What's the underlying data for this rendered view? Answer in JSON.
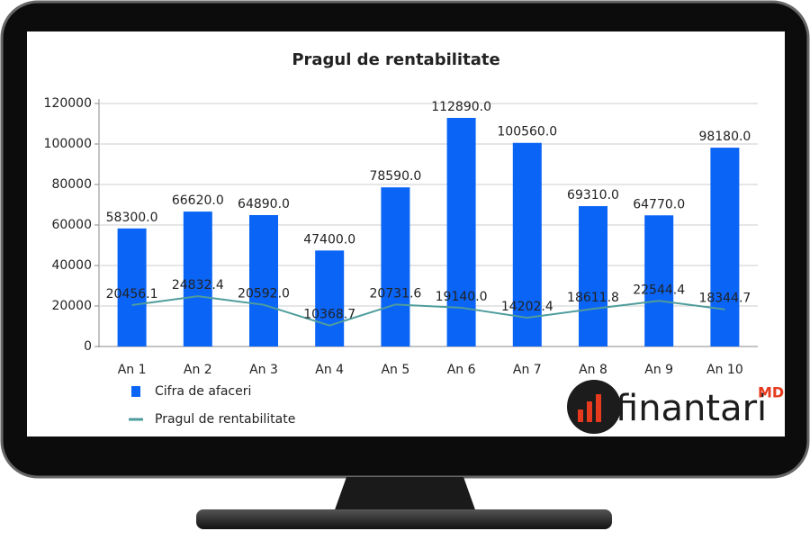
{
  "chart_data": {
    "type": "bar_line",
    "title": "Pragul de rentabilitate",
    "categories": [
      "An 1",
      "An 2",
      "An 3",
      "An 4",
      "An 5",
      "An 6",
      "An 7",
      "An 8",
      "An 9",
      "An 10"
    ],
    "series": [
      {
        "name": "Cifra de afaceri",
        "type": "bar",
        "color": "#0a64f5",
        "values": [
          58300,
          66620,
          64890,
          47400,
          78590,
          112890,
          100560,
          69310,
          64770,
          98180
        ],
        "value_labels": [
          "58300.0",
          "66620.0",
          "64890.0",
          "47400.0",
          "78590.0",
          "112890.0",
          "100560.0",
          "69310.0",
          "64770.0",
          "98180.0"
        ]
      },
      {
        "name": "Pragul de rentabilitate",
        "type": "line",
        "color": "#4f9c9c",
        "values": [
          20456.1,
          24832.4,
          20592,
          10368.7,
          20731.6,
          19140,
          14202.4,
          18611.8,
          22544.4,
          18344.7
        ],
        "value_labels": [
          "20456.1",
          "24832.4",
          "20592.0",
          "10368.7",
          "20731.6",
          "19140.0",
          "14202.4",
          "18611.8",
          "22544.4",
          "18344.7"
        ]
      }
    ],
    "ylim": [
      0,
      120000
    ],
    "yticks": [
      0,
      20000,
      40000,
      60000,
      80000,
      100000,
      120000
    ],
    "grid": true,
    "legend": "bottom-left"
  },
  "logo": {
    "text": "finantari",
    "superscript": "MD"
  }
}
